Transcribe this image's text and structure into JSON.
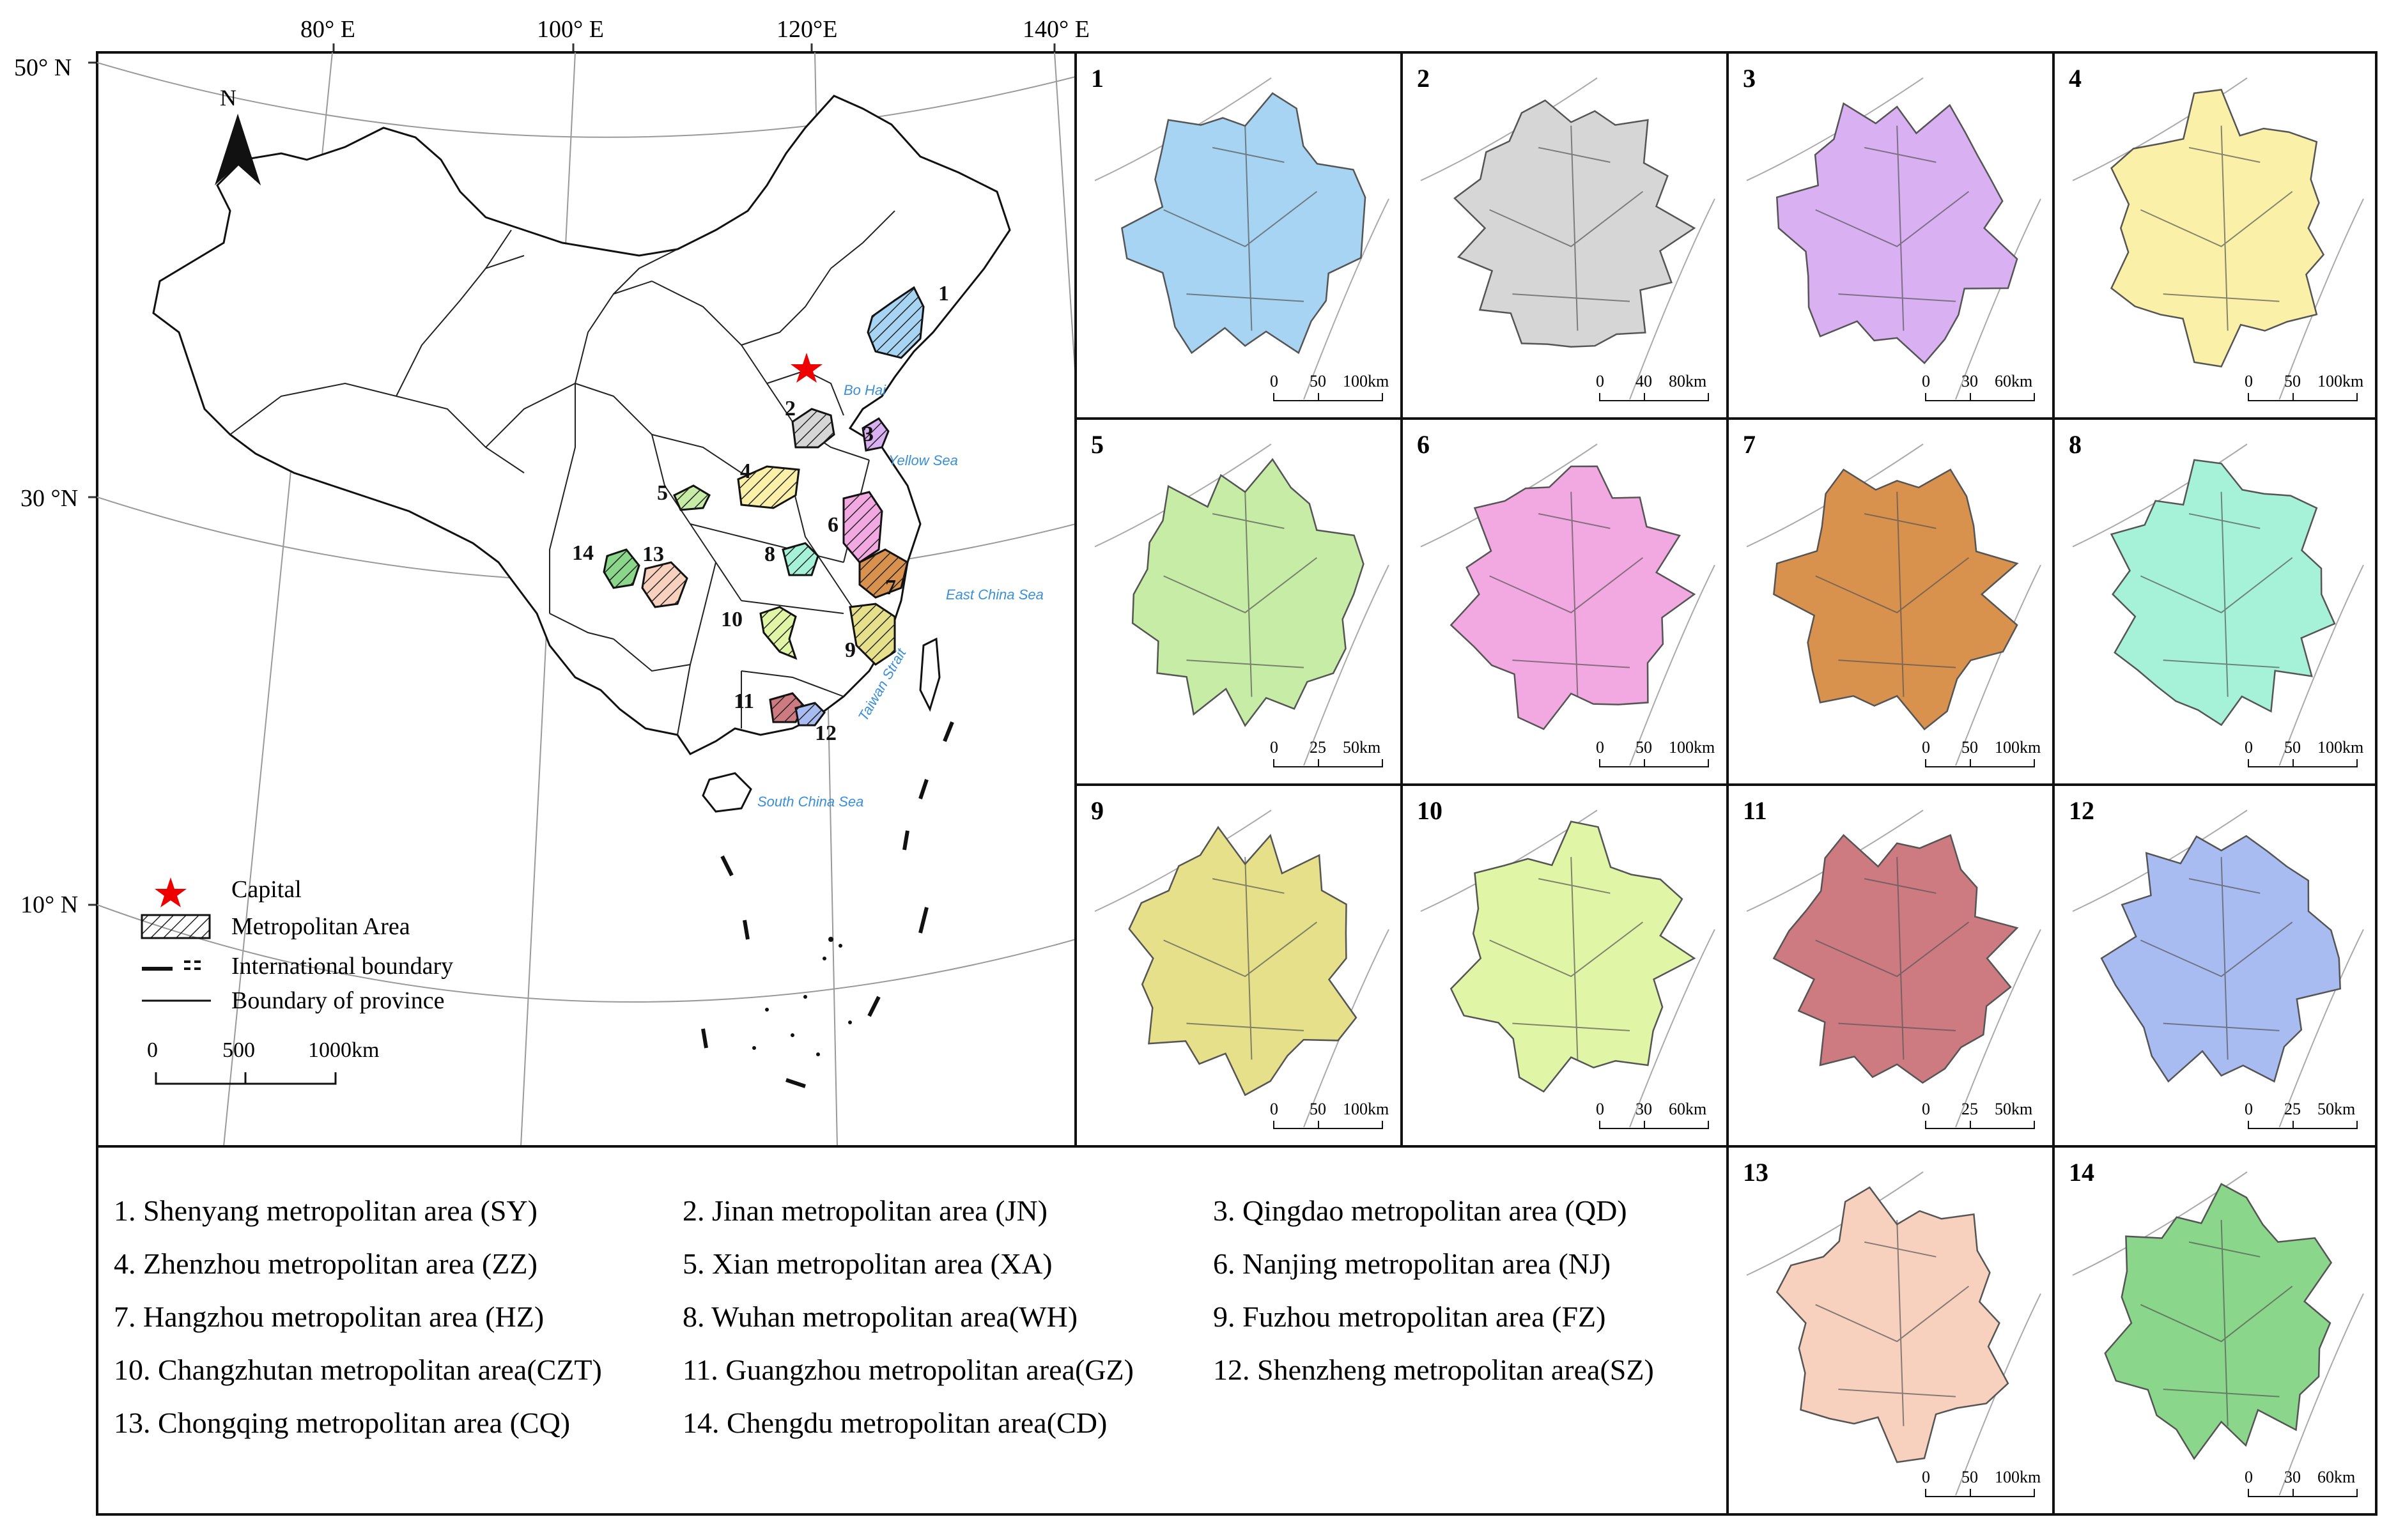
{
  "graticule": {
    "lon": [
      "80° E",
      "100° E",
      "120°E",
      "140° E"
    ],
    "lat": [
      "50° N",
      "30 °N",
      "10° N"
    ]
  },
  "north_label": "N",
  "seas": [
    {
      "id": "bohai",
      "label": "Bo Hai"
    },
    {
      "id": "yellow",
      "label": "Yellow Sea"
    },
    {
      "id": "eastchina",
      "label": "East China Sea"
    },
    {
      "id": "taiwan",
      "label": "Taiwan Strait"
    },
    {
      "id": "southchina",
      "label": "South China Sea"
    }
  ],
  "legend": {
    "capital": "Capital",
    "metro": "Metropolitan Area",
    "intl": "International boundary",
    "province": "Boundary of province",
    "scale": [
      "0",
      "500",
      "1000km"
    ]
  },
  "areas": [
    {
      "num": "1",
      "name": "1. Shenyang metropolitan area (SY)",
      "color": "#a6d4f2",
      "scale": [
        "0",
        "50",
        "100km"
      ]
    },
    {
      "num": "2",
      "name": "2. Jinan metropolitan area (JN)",
      "color": "#d6d6d6",
      "scale": [
        "0",
        "40",
        "80km"
      ]
    },
    {
      "num": "3",
      "name": "3. Qingdao metropolitan area (QD)",
      "color": "#d9b0f2",
      "scale": [
        "0",
        "30",
        "60km"
      ]
    },
    {
      "num": "4",
      "name": "4. Zhenzhou metropolitan area (ZZ)",
      "color": "#faf0a8",
      "scale": [
        "0",
        "50",
        "100km"
      ]
    },
    {
      "num": "5",
      "name": "5. Xian metropolitan area (XA)",
      "color": "#c6eca6",
      "scale": [
        "0",
        "25",
        "50km"
      ]
    },
    {
      "num": "6",
      "name": "6. Nanjing metropolitan area (NJ)",
      "color": "#f2a8e0",
      "scale": [
        "0",
        "50",
        "100km"
      ]
    },
    {
      "num": "7",
      "name": "7. Hangzhou metropolitan area (HZ)",
      "color": "#d9914e",
      "scale": [
        "0",
        "50",
        "100km"
      ]
    },
    {
      "num": "8",
      "name": "8. Wuhan metropolitan area(WH)",
      "color": "#a6f2d9",
      "scale": [
        "0",
        "50",
        "100km"
      ]
    },
    {
      "num": "9",
      "name": "9. Fuzhou metropolitan area (FZ)",
      "color": "#e6e08a",
      "scale": [
        "0",
        "50",
        "100km"
      ]
    },
    {
      "num": "10",
      "name": "10. Changzhutan metropolitan area(CZT)",
      "color": "#e0f5a6",
      "scale": [
        "0",
        "30",
        "60km"
      ]
    },
    {
      "num": "11",
      "name": "11. Guangzhou metropolitan area(GZ)",
      "color": "#cd7a80",
      "scale": [
        "0",
        "25",
        "50km"
      ]
    },
    {
      "num": "12",
      "name": "12. Shenzheng metropolitan area(SZ)",
      "color": "#a9bcf2",
      "scale": [
        "0",
        "25",
        "50km"
      ]
    },
    {
      "num": "13",
      "name": "13. Chongqing metropolitan area (CQ)",
      "color": "#f7d1bd",
      "scale": [
        "0",
        "50",
        "100km"
      ]
    },
    {
      "num": "14",
      "name": "14. Chengdu metropolitan area(CD)",
      "color": "#8ad68a",
      "scale": [
        "0",
        "30",
        "60km"
      ]
    }
  ]
}
